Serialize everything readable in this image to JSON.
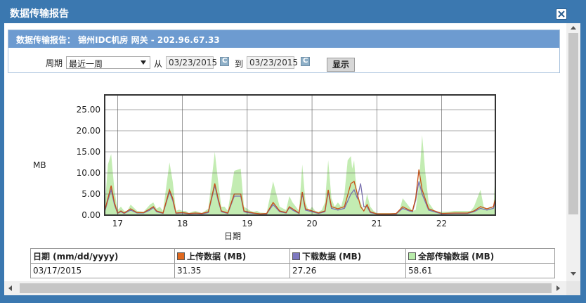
{
  "window": {
    "title": "数据传输报告"
  },
  "panel": {
    "title": "数据传输报告： 锦州IDC机房 网关 - 202.96.67.33"
  },
  "filters": {
    "period_label": "周期",
    "period_value": "最近一周",
    "from_label": "从",
    "from_date": "03/23/2015",
    "to_label": "到",
    "to_date": "03/23/2015",
    "calendar_glyph": "C",
    "show_label": "显示"
  },
  "chart_data": {
    "type": "area",
    "ylabel": "MB",
    "xlabel": "日期",
    "ylim": [
      0,
      28.5
    ],
    "xlim": [
      16.8,
      22.83
    ],
    "y_ticks": [
      "0.00",
      "5.00",
      "10.00",
      "15.00",
      "20.00",
      "25.00"
    ],
    "x_ticks": [
      "17",
      "18",
      "19",
      "20",
      "21",
      "22"
    ],
    "grid": true,
    "series": [
      {
        "name": "全部传输数据 (MB)",
        "color": "#c3ecb2",
        "x": [
          16.8,
          16.85,
          16.9,
          16.95,
          17.0,
          17.05,
          17.1,
          17.15,
          17.2,
          17.3,
          17.4,
          17.5,
          17.55,
          17.6,
          17.65,
          17.7,
          17.8,
          17.85,
          17.9,
          17.95,
          18.0,
          18.05,
          18.1,
          18.15,
          18.2,
          18.3,
          18.4,
          18.5,
          18.55,
          18.6,
          18.65,
          18.7,
          18.8,
          18.9,
          18.95,
          19.0,
          19.05,
          19.1,
          19.15,
          19.2,
          19.3,
          19.4,
          19.5,
          19.6,
          19.65,
          19.7,
          19.75,
          19.8,
          19.85,
          19.9,
          19.95,
          20.0,
          20.05,
          20.1,
          20.15,
          20.2,
          20.25,
          20.3,
          20.35,
          20.4,
          20.45,
          20.5,
          20.55,
          20.6,
          20.62,
          20.65,
          20.67,
          20.7,
          20.75,
          20.8,
          20.85,
          20.9,
          20.95,
          21.0,
          21.1,
          21.2,
          21.3,
          21.35,
          21.4,
          21.45,
          21.5,
          21.55,
          21.6,
          21.65,
          21.7,
          21.75,
          21.8,
          21.9,
          22.0,
          22.1,
          22.2,
          22.3,
          22.4,
          22.45,
          22.5,
          22.55,
          22.6,
          22.65,
          22.7,
          22.75,
          22.8,
          22.83
        ],
        "values": [
          1.5,
          12,
          14.5,
          6,
          1.2,
          2,
          1,
          1,
          2.5,
          1,
          0.8,
          2.5,
          3,
          1.5,
          2,
          1,
          12.5,
          8,
          1,
          1.3,
          1,
          1,
          0.5,
          0.8,
          1,
          0.5,
          1.5,
          15,
          8,
          2,
          2,
          1,
          10.5,
          11,
          2,
          1.5,
          1,
          0.8,
          1,
          0.6,
          0.5,
          8,
          2,
          1.2,
          4.5,
          3,
          2,
          1,
          12,
          3,
          1,
          2,
          1,
          0.8,
          1.2,
          3,
          13,
          4,
          2,
          3,
          2,
          5,
          13,
          14,
          11,
          13,
          9,
          5,
          3,
          1,
          5,
          2,
          1,
          0.5,
          0.5,
          0.5,
          0.5,
          1,
          4,
          3,
          2,
          1,
          1.2,
          7,
          19,
          10,
          3,
          0.8,
          0.8,
          0.8,
          1,
          1,
          1,
          1,
          2,
          4,
          6,
          2,
          1.5,
          2,
          1.5,
          10
        ]
      },
      {
        "name": "上传数据 (MB)",
        "color": "#c85016",
        "x": [
          16.8,
          16.85,
          16.9,
          16.95,
          17.0,
          17.05,
          17.1,
          17.2,
          17.3,
          17.4,
          17.5,
          17.55,
          17.6,
          17.7,
          17.8,
          17.85,
          17.9,
          18.0,
          18.1,
          18.2,
          18.3,
          18.4,
          18.5,
          18.55,
          18.6,
          18.7,
          18.8,
          18.9,
          18.95,
          19.0,
          19.1,
          19.2,
          19.3,
          19.4,
          19.5,
          19.6,
          19.65,
          19.7,
          19.8,
          19.85,
          19.9,
          20.0,
          20.1,
          20.2,
          20.25,
          20.3,
          20.4,
          20.5,
          20.6,
          20.65,
          20.7,
          20.75,
          20.8,
          20.85,
          20.9,
          21.0,
          21.2,
          21.3,
          21.4,
          21.5,
          21.55,
          21.6,
          21.65,
          21.7,
          21.8,
          22.0,
          22.2,
          22.4,
          22.5,
          22.6,
          22.7,
          22.8,
          22.83
        ],
        "values": [
          1,
          4,
          7,
          3,
          0.5,
          1,
          0.5,
          1.5,
          0.6,
          0.6,
          1.5,
          2,
          1,
          0.5,
          6,
          4,
          0.5,
          0.6,
          0.4,
          0.5,
          0.4,
          0.8,
          7.5,
          4,
          1,
          0.5,
          5,
          5,
          1,
          0.8,
          0.5,
          0.3,
          0.4,
          3,
          1,
          0.6,
          2,
          1.5,
          0.5,
          5.5,
          1.5,
          1,
          0.5,
          1,
          6,
          2,
          1.5,
          2,
          7.5,
          8,
          5,
          2,
          1,
          2.5,
          0.8,
          0.3,
          0.3,
          0.4,
          2,
          1.2,
          1,
          4,
          10.8,
          6,
          1.5,
          0.4,
          0.5,
          0.5,
          1,
          2,
          1.5,
          2,
          4
        ]
      },
      {
        "name": "下载数据 (MB)",
        "color": "#7b72b0",
        "x": [
          16.8,
          16.85,
          16.9,
          16.95,
          17.0,
          17.05,
          17.1,
          17.2,
          17.3,
          17.4,
          17.5,
          17.55,
          17.6,
          17.7,
          17.8,
          17.85,
          17.9,
          18.0,
          18.1,
          18.2,
          18.3,
          18.4,
          18.5,
          18.55,
          18.6,
          18.7,
          18.8,
          18.9,
          18.95,
          19.0,
          19.1,
          19.2,
          19.3,
          19.4,
          19.5,
          19.6,
          19.65,
          19.7,
          19.8,
          19.85,
          19.9,
          20.0,
          20.1,
          20.2,
          20.25,
          20.3,
          20.4,
          20.5,
          20.6,
          20.65,
          20.7,
          20.75,
          20.8,
          20.85,
          20.9,
          21.0,
          21.2,
          21.3,
          21.4,
          21.5,
          21.55,
          21.6,
          21.65,
          21.7,
          21.8,
          22.0,
          22.2,
          22.4,
          22.5,
          22.6,
          22.7,
          22.8,
          22.83
        ],
        "values": [
          0.8,
          3.5,
          6,
          2.5,
          0.4,
          0.8,
          0.4,
          1.2,
          0.5,
          0.5,
          1.2,
          1.8,
          0.8,
          0.4,
          5.5,
          3.5,
          0.4,
          0.5,
          0.3,
          0.4,
          0.3,
          0.6,
          7,
          3.5,
          0.8,
          0.4,
          4.5,
          4.5,
          0.8,
          0.6,
          0.4,
          0.3,
          0.3,
          2.5,
          0.8,
          0.5,
          1.8,
          1.2,
          0.4,
          5,
          1.2,
          0.8,
          0.4,
          0.8,
          5.5,
          1.6,
          1.2,
          1.6,
          5,
          6,
          4,
          7.5,
          2,
          2,
          0.6,
          0.3,
          0.3,
          0.3,
          1.6,
          1,
          0.8,
          3.5,
          8,
          5,
          1.2,
          0.3,
          0.4,
          0.4,
          0.8,
          1.6,
          1.2,
          1.6,
          3.5
        ]
      }
    ]
  },
  "table": {
    "headers": [
      "日期 (mm/dd/yyyy)",
      "上传数据 (MB)",
      "下载数据 (MB)",
      "全部传输数据 (MB)"
    ],
    "header_swatches": [
      "",
      "#e0691f",
      "#7d78c0",
      "#b8ebaa"
    ],
    "rows": [
      [
        "03/17/2015",
        "31.35",
        "27.26",
        "58.61"
      ]
    ]
  }
}
